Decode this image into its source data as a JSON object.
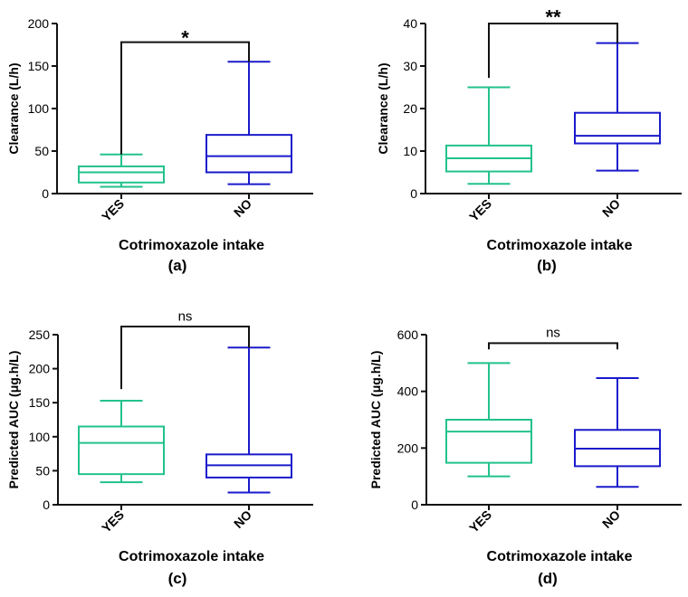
{
  "colors": {
    "yes": "#22c28a",
    "no": "#1a1acc",
    "axis": "#111111"
  },
  "chart_data": [
    {
      "panel": "(a)",
      "type": "box",
      "categories": [
        "YES",
        "NO"
      ],
      "xlabel": "Cotrimoxazole intake",
      "ylabel": "Clearance (L/h)",
      "ylim": [
        0,
        200
      ],
      "yticks": [
        0,
        50,
        100,
        150,
        200
      ],
      "ytick_labels": [
        "0",
        "50",
        "100",
        "150",
        "200"
      ],
      "significance": "*",
      "series": [
        {
          "name": "YES",
          "min": 8,
          "q1": 13,
          "median": 25,
          "q3": 32,
          "max": 46
        },
        {
          "name": "NO",
          "min": 11,
          "q1": 25,
          "median": 44,
          "q3": 69,
          "max": 155
        }
      ],
      "bracket": {
        "yes_start": 46,
        "no_start": 155,
        "top": 178,
        "label_at": 188
      }
    },
    {
      "panel": "(b)",
      "type": "box",
      "categories": [
        "YES",
        "NO"
      ],
      "xlabel": "Cotrimoxazole intake",
      "ylabel": "Clearance (L/h)",
      "ylim": [
        0,
        40
      ],
      "yticks": [
        0,
        10,
        20,
        30,
        40
      ],
      "ytick_labels": [
        "0",
        "10",
        "20",
        "30",
        "40"
      ],
      "significance": "**",
      "series": [
        {
          "name": "YES",
          "min": 2.3,
          "q1": 5.2,
          "median": 8.3,
          "q3": 11.3,
          "max": 25
        },
        {
          "name": "NO",
          "min": 5.4,
          "q1": 11.8,
          "median": 13.6,
          "q3": 19,
          "max": 35.4
        }
      ],
      "bracket": {
        "yes_start": 27.2,
        "no_start": 35.4,
        "top": 40,
        "label_at": 42.5
      }
    },
    {
      "panel": "(c)",
      "type": "box",
      "categories": [
        "YES",
        "NO"
      ],
      "xlabel": "Cotrimoxazole intake",
      "ylabel": "Predicted AUC (μg.h/L)",
      "ylim": [
        0,
        250
      ],
      "yticks": [
        0,
        50,
        100,
        150,
        200,
        250
      ],
      "ytick_labels": [
        "0",
        "50",
        "100",
        "150",
        "200",
        "250"
      ],
      "significance": "ns",
      "series": [
        {
          "name": "YES",
          "min": 33,
          "q1": 45,
          "median": 91,
          "q3": 115,
          "max": 153
        },
        {
          "name": "NO",
          "min": 18,
          "q1": 40,
          "median": 58,
          "q3": 74,
          "max": 231
        }
      ],
      "bracket": {
        "yes_start": 170,
        "no_start": 231,
        "top": 262,
        "label_at": 276
      }
    },
    {
      "panel": "(d)",
      "type": "box",
      "categories": [
        "YES",
        "NO"
      ],
      "xlabel": "Cotrimoxazole intake",
      "ylabel": "Predicted AUC (μg.h/L)",
      "ylim": [
        0,
        600
      ],
      "yticks": [
        0,
        200,
        400,
        600
      ],
      "ytick_labels": [
        "0",
        "200",
        "400",
        "600"
      ],
      "significance": "ns",
      "series": [
        {
          "name": "YES",
          "min": 100,
          "q1": 148,
          "median": 258,
          "q3": 300,
          "max": 500
        },
        {
          "name": "NO",
          "min": 63,
          "q1": 136,
          "median": 198,
          "q3": 264,
          "max": 447
        }
      ],
      "bracket": {
        "yes_start": 548,
        "no_start": 548,
        "top": 570,
        "label_at": 605
      }
    }
  ]
}
